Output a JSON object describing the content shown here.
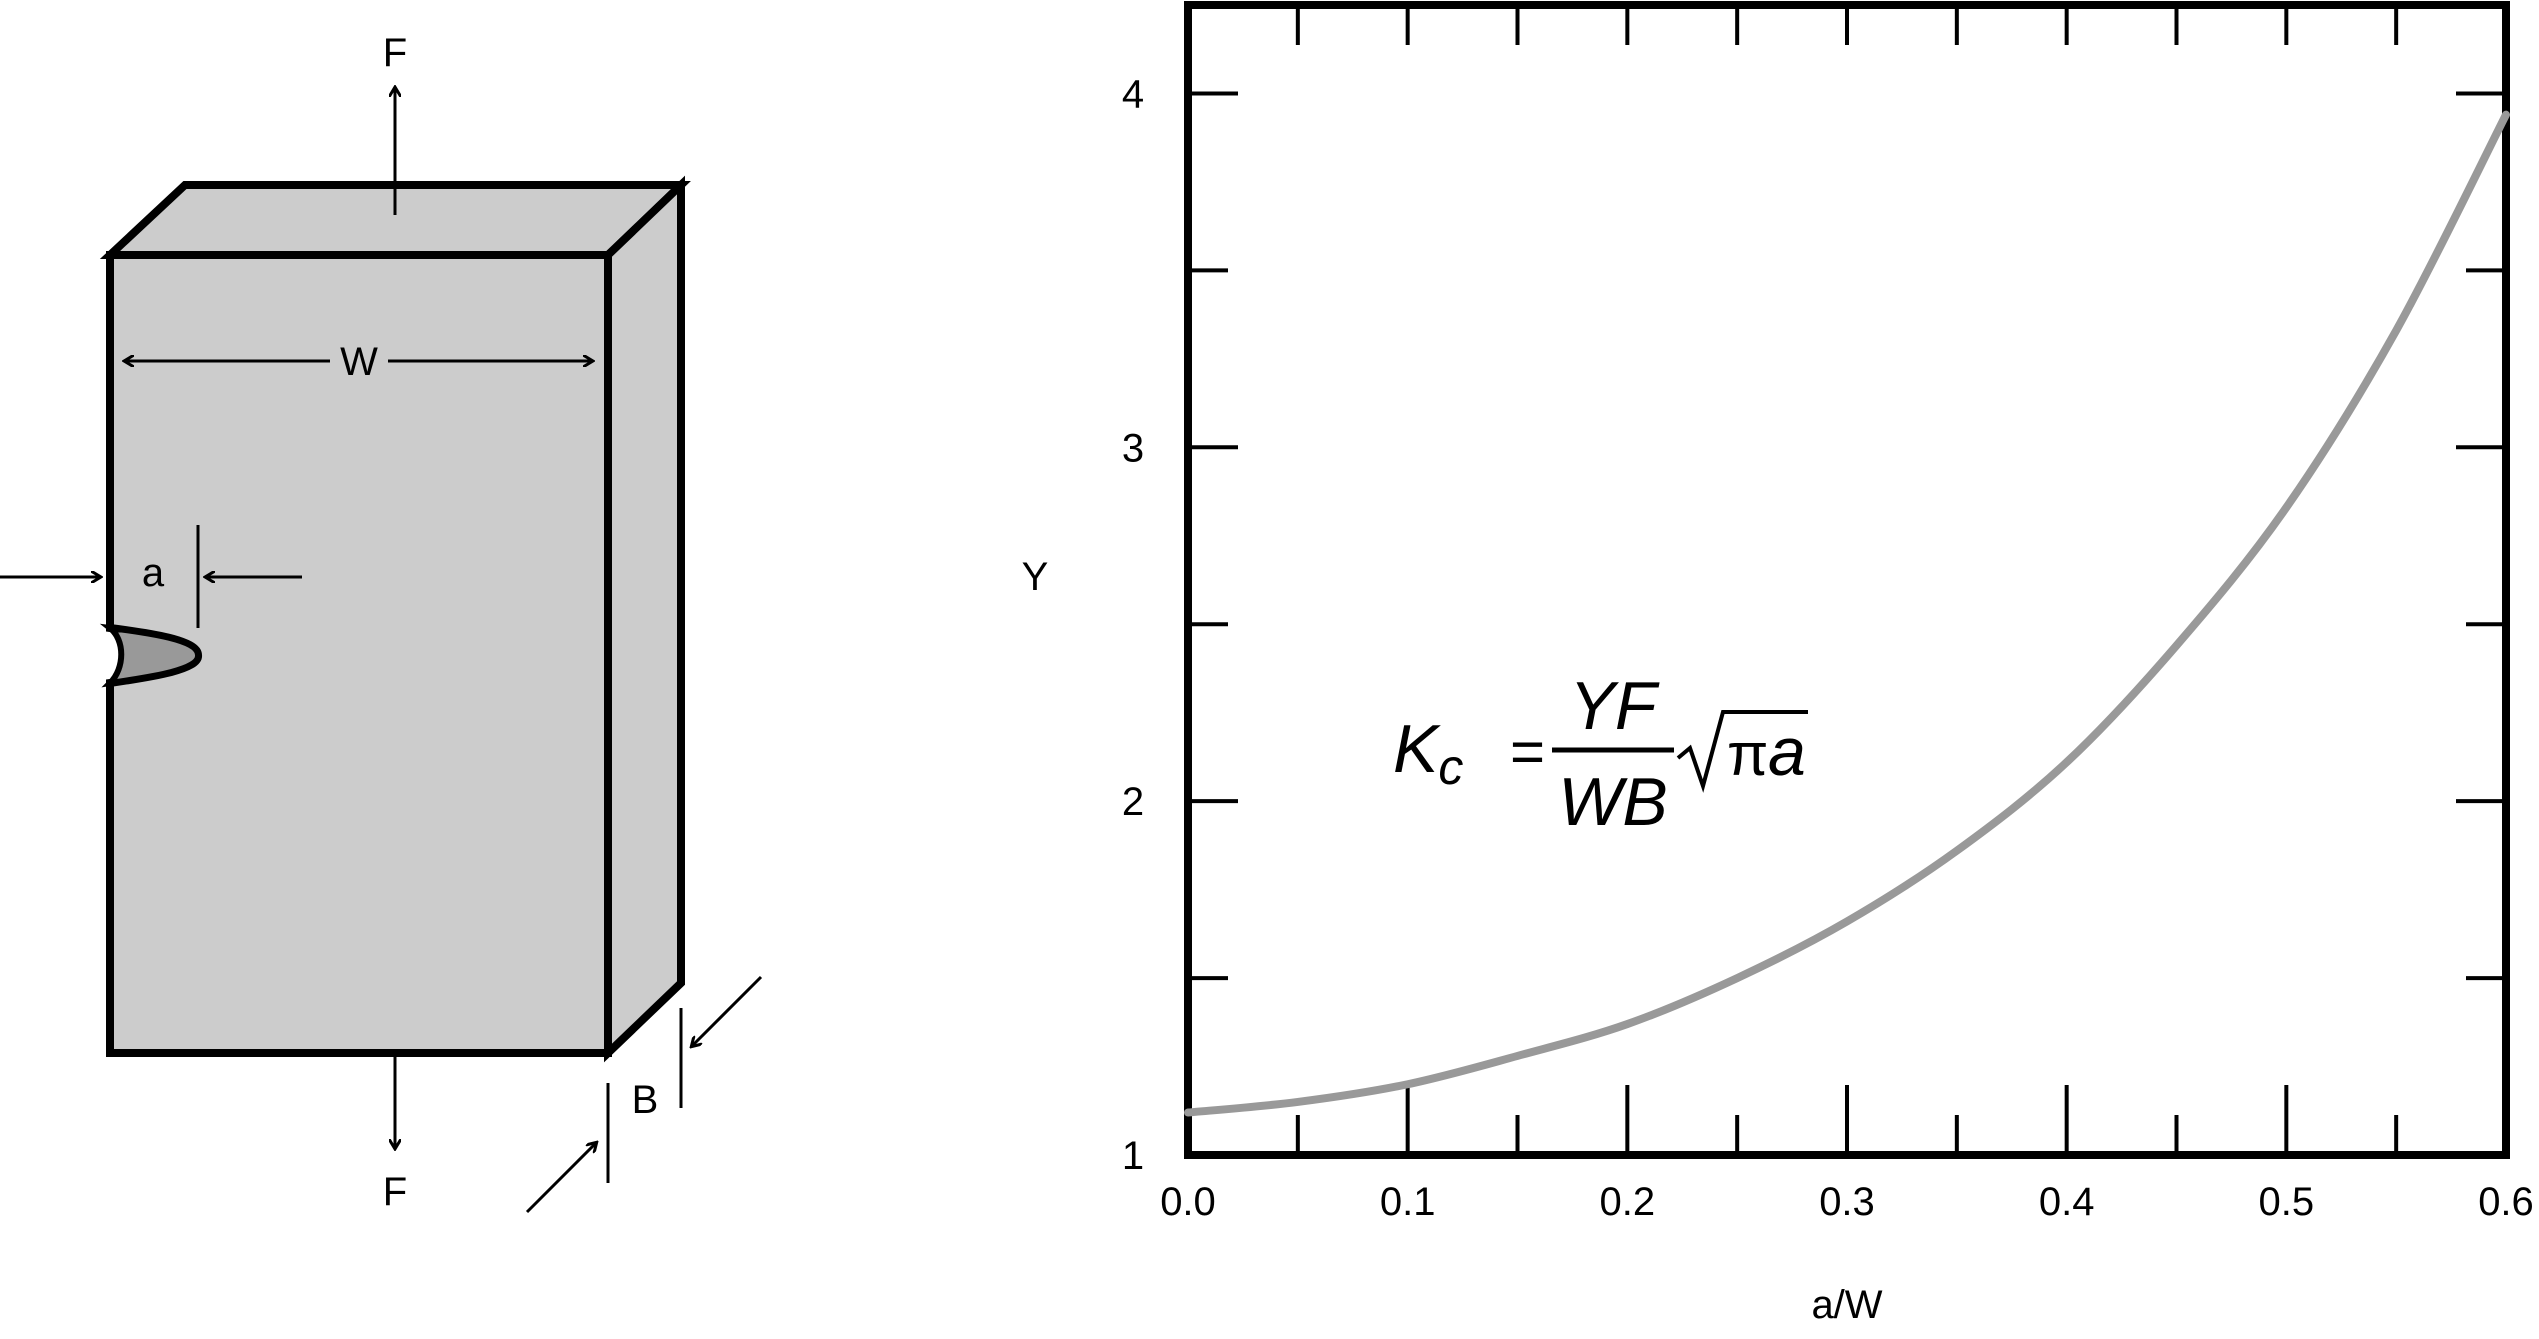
{
  "specimen": {
    "force_top_label": "F",
    "force_bottom_label": "F",
    "width_label": "W",
    "crack_label": "a",
    "thickness_label": "B"
  },
  "equation": {
    "lhs": "K",
    "lhs_subscript": "c",
    "equals": "=",
    "numerator": "YF",
    "denominator": "WB",
    "radical_pi": "π",
    "radical_var": "a"
  },
  "chart_data": {
    "type": "line",
    "xlabel": "a/W",
    "ylabel": "Y",
    "xlim": [
      0.0,
      0.6
    ],
    "ylim": [
      1,
      4.25
    ],
    "x_ticks": [
      0.0,
      0.1,
      0.2,
      0.3,
      0.4,
      0.5,
      0.6
    ],
    "x_tick_labels": [
      "0.0",
      "0.1",
      "0.2",
      "0.3",
      "0.4",
      "0.5",
      "0.6"
    ],
    "y_ticks": [
      1,
      2,
      3,
      4
    ],
    "y_tick_labels": [
      "1",
      "2",
      "3",
      "4"
    ],
    "x_minor_ticks": [
      0.05,
      0.15,
      0.25,
      0.35,
      0.45,
      0.55
    ],
    "y_minor_ticks": [
      1.5,
      2.5,
      3.5
    ],
    "grid": false,
    "series": [
      {
        "color": "#999999",
        "x": [
          0.0,
          0.05,
          0.1,
          0.15,
          0.2,
          0.25,
          0.3,
          0.35,
          0.4,
          0.45,
          0.5,
          0.55,
          0.6
        ],
        "y": [
          1.12,
          1.15,
          1.2,
          1.28,
          1.37,
          1.5,
          1.66,
          1.86,
          2.11,
          2.44,
          2.83,
          3.33,
          3.94
        ]
      }
    ]
  }
}
